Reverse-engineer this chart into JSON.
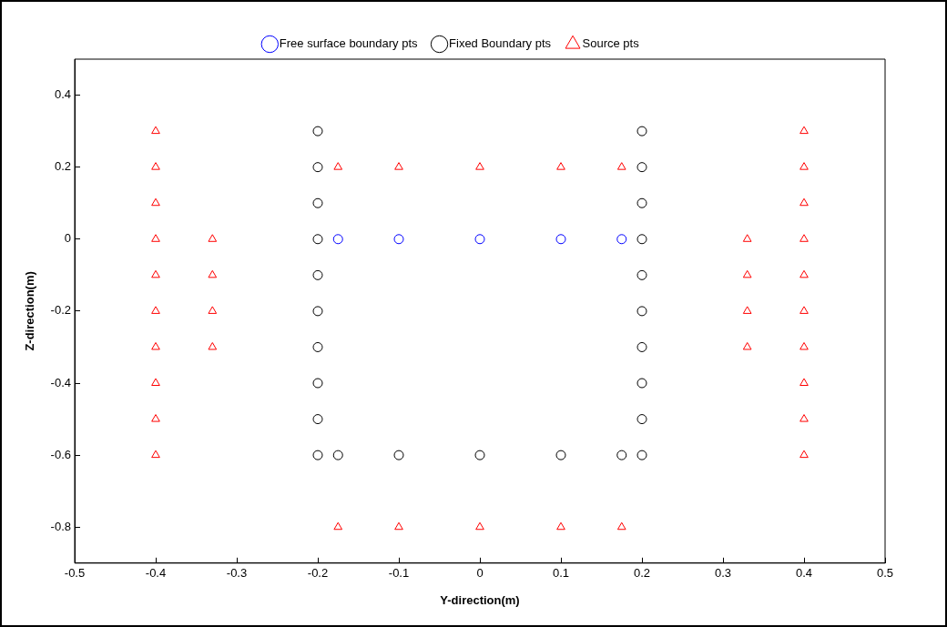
{
  "chart_data": {
    "type": "scatter",
    "xlabel": "Y-direction(m)",
    "ylabel": "Z-direction(m)",
    "xlim": [
      -0.5,
      0.5
    ],
    "xticks": [
      -0.5,
      -0.4,
      -0.3,
      -0.2,
      -0.1,
      0,
      0.1,
      0.2,
      0.3,
      0.4,
      0.5
    ],
    "ylim": [
      -0.9,
      0.5
    ],
    "yticks": [
      -0.8,
      -0.6,
      -0.4,
      -0.2,
      0,
      0.2,
      0.4
    ],
    "grid": false,
    "legend": "top",
    "series": [
      {
        "name": "Free surface boundary pts",
        "color": "#0000ff",
        "marker": "circle",
        "x": [
          -0.175,
          -0.1,
          0,
          0.1,
          0.175
        ],
        "values": [
          0,
          0,
          0,
          0,
          0
        ]
      },
      {
        "name": "Fixed Boundary pts",
        "color": "#000000",
        "marker": "circle",
        "x": [
          -0.2,
          -0.2,
          -0.2,
          -0.2,
          -0.2,
          -0.2,
          -0.2,
          -0.2,
          -0.2,
          -0.2,
          0.2,
          0.2,
          0.2,
          0.2,
          0.2,
          0.2,
          0.2,
          0.2,
          0.2,
          0.2,
          -0.175,
          -0.1,
          0,
          0.1,
          0.175
        ],
        "values": [
          0.3,
          0.2,
          0.1,
          0,
          -0.1,
          -0.2,
          -0.3,
          -0.4,
          -0.5,
          -0.6,
          0.3,
          0.2,
          0.1,
          0,
          -0.1,
          -0.2,
          -0.3,
          -0.4,
          -0.5,
          -0.6,
          -0.6,
          -0.6,
          -0.6,
          -0.6,
          -0.6
        ]
      },
      {
        "name": "Source pts",
        "color": "#ff0000",
        "marker": "triangle",
        "x": [
          -0.4,
          -0.4,
          -0.4,
          -0.4,
          -0.4,
          -0.4,
          -0.4,
          -0.4,
          -0.4,
          -0.4,
          0.4,
          0.4,
          0.4,
          0.4,
          0.4,
          0.4,
          0.4,
          0.4,
          0.4,
          0.4,
          -0.33,
          -0.33,
          -0.33,
          -0.33,
          0.33,
          0.33,
          0.33,
          0.33,
          -0.175,
          -0.1,
          0,
          0.1,
          0.175,
          -0.175,
          -0.1,
          0,
          0.1,
          0.175
        ],
        "values": [
          0.3,
          0.2,
          0.1,
          0,
          -0.1,
          -0.2,
          -0.3,
          -0.4,
          -0.5,
          -0.6,
          0.3,
          0.2,
          0.1,
          0,
          -0.1,
          -0.2,
          -0.3,
          -0.4,
          -0.5,
          -0.6,
          0,
          -0.1,
          -0.2,
          -0.3,
          0,
          -0.1,
          -0.2,
          -0.3,
          0.2,
          0.2,
          0.2,
          0.2,
          0.2,
          -0.8,
          -0.8,
          -0.8,
          -0.8,
          -0.8
        ]
      }
    ]
  }
}
